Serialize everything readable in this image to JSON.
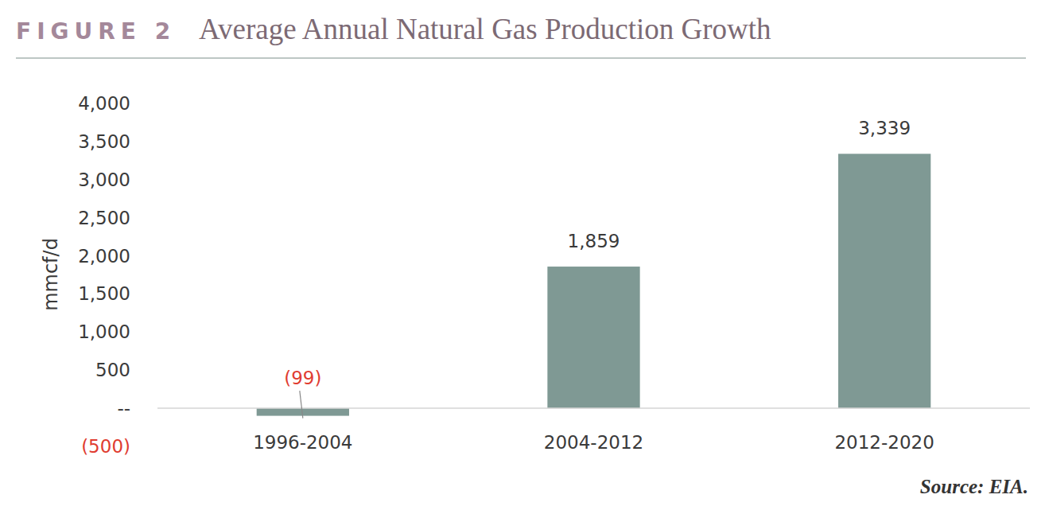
{
  "chart_data": {
    "type": "bar",
    "figure_label": "FIGURE 2",
    "title": "Average Annual Natural Gas Production Growth",
    "y_label": "mmcf/d",
    "source": "Source: EIA.",
    "categories": [
      "1996-2004",
      "2004-2012",
      "2012-2020"
    ],
    "values": [
      -99,
      1859,
      3339
    ],
    "value_labels": [
      "(99)",
      "1,859",
      "3,339"
    ],
    "data_labels": true,
    "color": "#7f9994",
    "ylim": [
      -500,
      4000
    ],
    "yticks": [
      {
        "value": -500,
        "label": "(500)"
      },
      {
        "value": 0,
        "label": "--"
      },
      500,
      {
        "value": 1000,
        "label": "1,000"
      },
      {
        "value": 1500,
        "label": "1,500"
      },
      {
        "value": 2000,
        "label": "2,000"
      },
      {
        "value": 2500,
        "label": "2,500"
      },
      {
        "value": 3000,
        "label": "3,000"
      },
      {
        "value": 3500,
        "label": "3,500"
      },
      {
        "value": 4000,
        "label": "4,000"
      }
    ],
    "grid": false
  }
}
